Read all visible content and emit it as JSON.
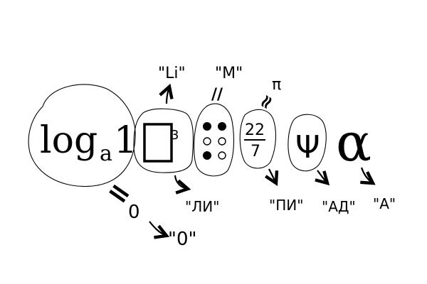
{
  "rebus": {
    "log": {
      "base_word": "log",
      "subscript": "a",
      "argument": "1",
      "eq_mark": "=",
      "value": "0",
      "quoted": "\"0\""
    },
    "square_cube": {
      "exponent": "3",
      "above_label": "\"Li\"",
      "below_label": "\"ЛИ\""
    },
    "roman_numeral": {
      "eq_mark": "//",
      "label": "\"M\""
    },
    "fraction": {
      "numerator": "22",
      "denominator": "7",
      "approx_mark": "≈",
      "symbol": "π",
      "label": "\"ПИ\""
    },
    "trident": {
      "symbol": "Ψ",
      "label": "\"АД\""
    },
    "alpha": {
      "symbol": "α",
      "label": "\"А\""
    }
  }
}
